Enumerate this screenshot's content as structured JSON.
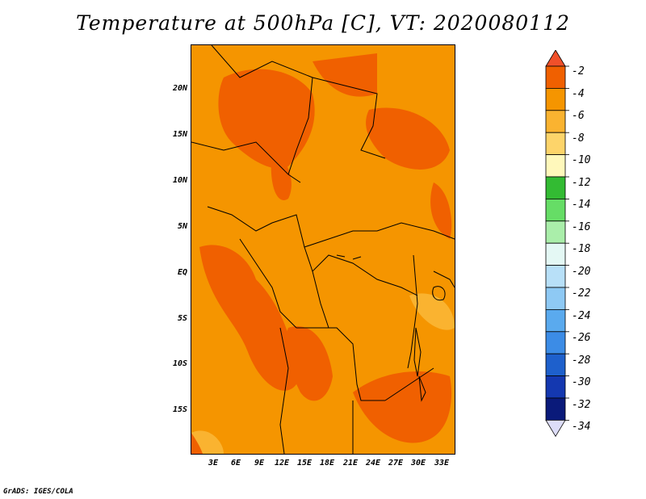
{
  "title": "Temperature at 500hPa [C], VT: 2020080112",
  "map": {
    "lat_labels": [
      "20N",
      "15N",
      "10N",
      "5N",
      "EQ",
      "5S",
      "10S",
      "15S"
    ],
    "lon_labels": [
      "3E",
      "6E",
      "9E",
      "12E",
      "15E",
      "18E",
      "21E",
      "24E",
      "27E",
      "30E",
      "33E"
    ]
  },
  "colorbar": {
    "labels": [
      "-2",
      "-4",
      "-6",
      "-8",
      "-10",
      "-12",
      "-14",
      "-16",
      "-18",
      "-20",
      "-22",
      "-24",
      "-26",
      "-28",
      "-30",
      "-32",
      "-34"
    ],
    "colors": [
      "#f0502a",
      "#f06000",
      "#f59500",
      "#fab330",
      "#fdd46a",
      "#fff8bb",
      "#33bb33",
      "#66dd66",
      "#aaeeaa",
      "#e4f8f4",
      "#b8e0f8",
      "#8ec9f4",
      "#5aaaee",
      "#3c8ce6",
      "#1e60cc",
      "#1438b0",
      "#0a1a7a",
      "#ddddf8"
    ]
  },
  "credit": "GrADS: IGES/COLA"
}
